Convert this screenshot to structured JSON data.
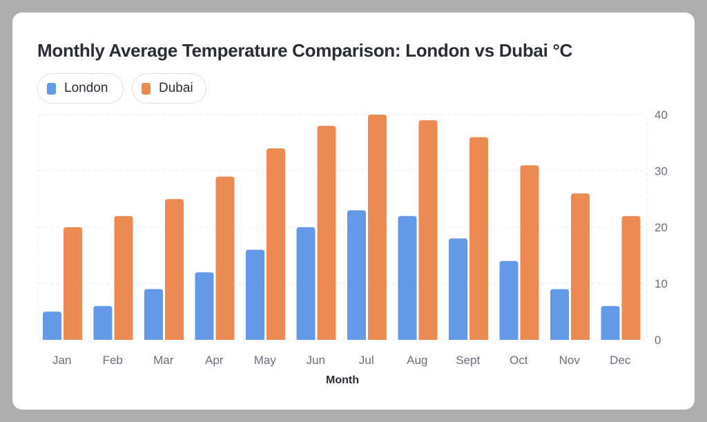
{
  "chart_data": {
    "type": "bar",
    "title": "Monthly Average Temperature Comparison: London vs Dubai °C",
    "xlabel": "Month",
    "ylabel": "",
    "categories": [
      "Jan",
      "Feb",
      "Mar",
      "Apr",
      "May",
      "Jun",
      "Jul",
      "Aug",
      "Sept",
      "Oct",
      "Nov",
      "Dec"
    ],
    "series": [
      {
        "name": "London",
        "color": "#6399e6",
        "values": [
          5,
          6,
          9,
          12,
          16,
          20,
          23,
          22,
          18,
          14,
          9,
          6
        ]
      },
      {
        "name": "Dubai",
        "color": "#ec8a54",
        "values": [
          20,
          22,
          25,
          29,
          34,
          38,
          40,
          39,
          36,
          31,
          26,
          22
        ]
      }
    ],
    "ylim": [
      0,
      40
    ],
    "yticks": [
      0,
      10,
      20,
      30,
      40
    ],
    "y_axis_side": "right",
    "grid": true,
    "legend_position": "top-left"
  }
}
